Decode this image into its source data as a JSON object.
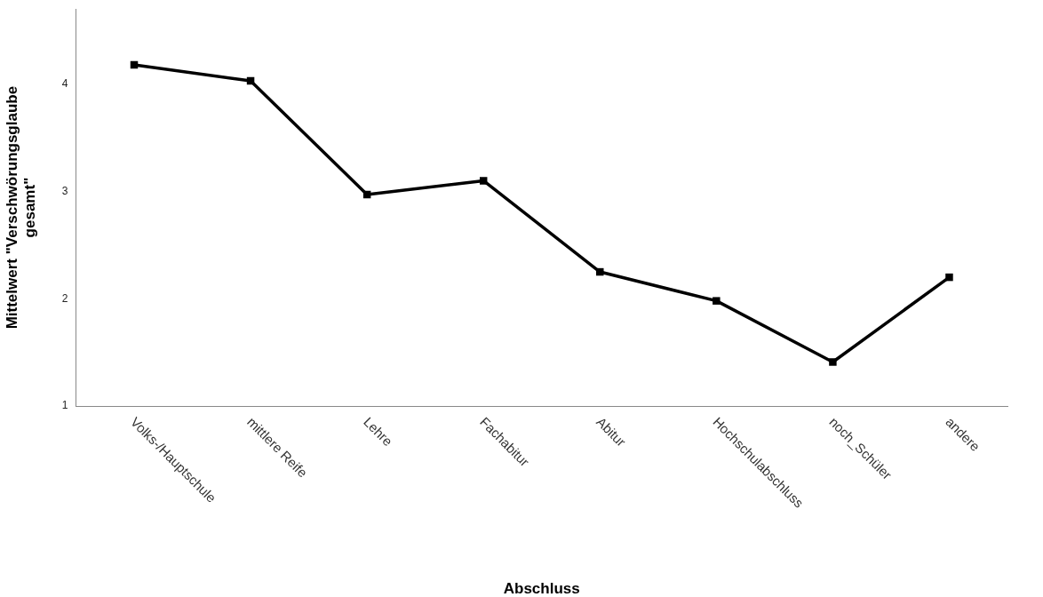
{
  "chart_data": {
    "type": "line",
    "xlabel": "Abschluss",
    "ylabel": "Mittelwert \"Verschwörungsglaube gesamt\"",
    "categories": [
      "Volks-/Hauptschule",
      "mittlere Reife",
      "Lehre",
      "Fachabitur",
      "Abitur",
      "Hochschulabschluss",
      "noch_Schüler",
      "andere"
    ],
    "series": [
      {
        "color": "#000000",
        "values": [
          4.18,
          4.03,
          2.97,
          3.1,
          2.25,
          1.98,
          1.41,
          2.2
        ]
      }
    ],
    "ylim": [
      1,
      4.7
    ],
    "yticks": [
      1,
      2,
      3,
      4
    ],
    "grid": false,
    "legend": false,
    "marker": "square",
    "line_style": "solid"
  }
}
